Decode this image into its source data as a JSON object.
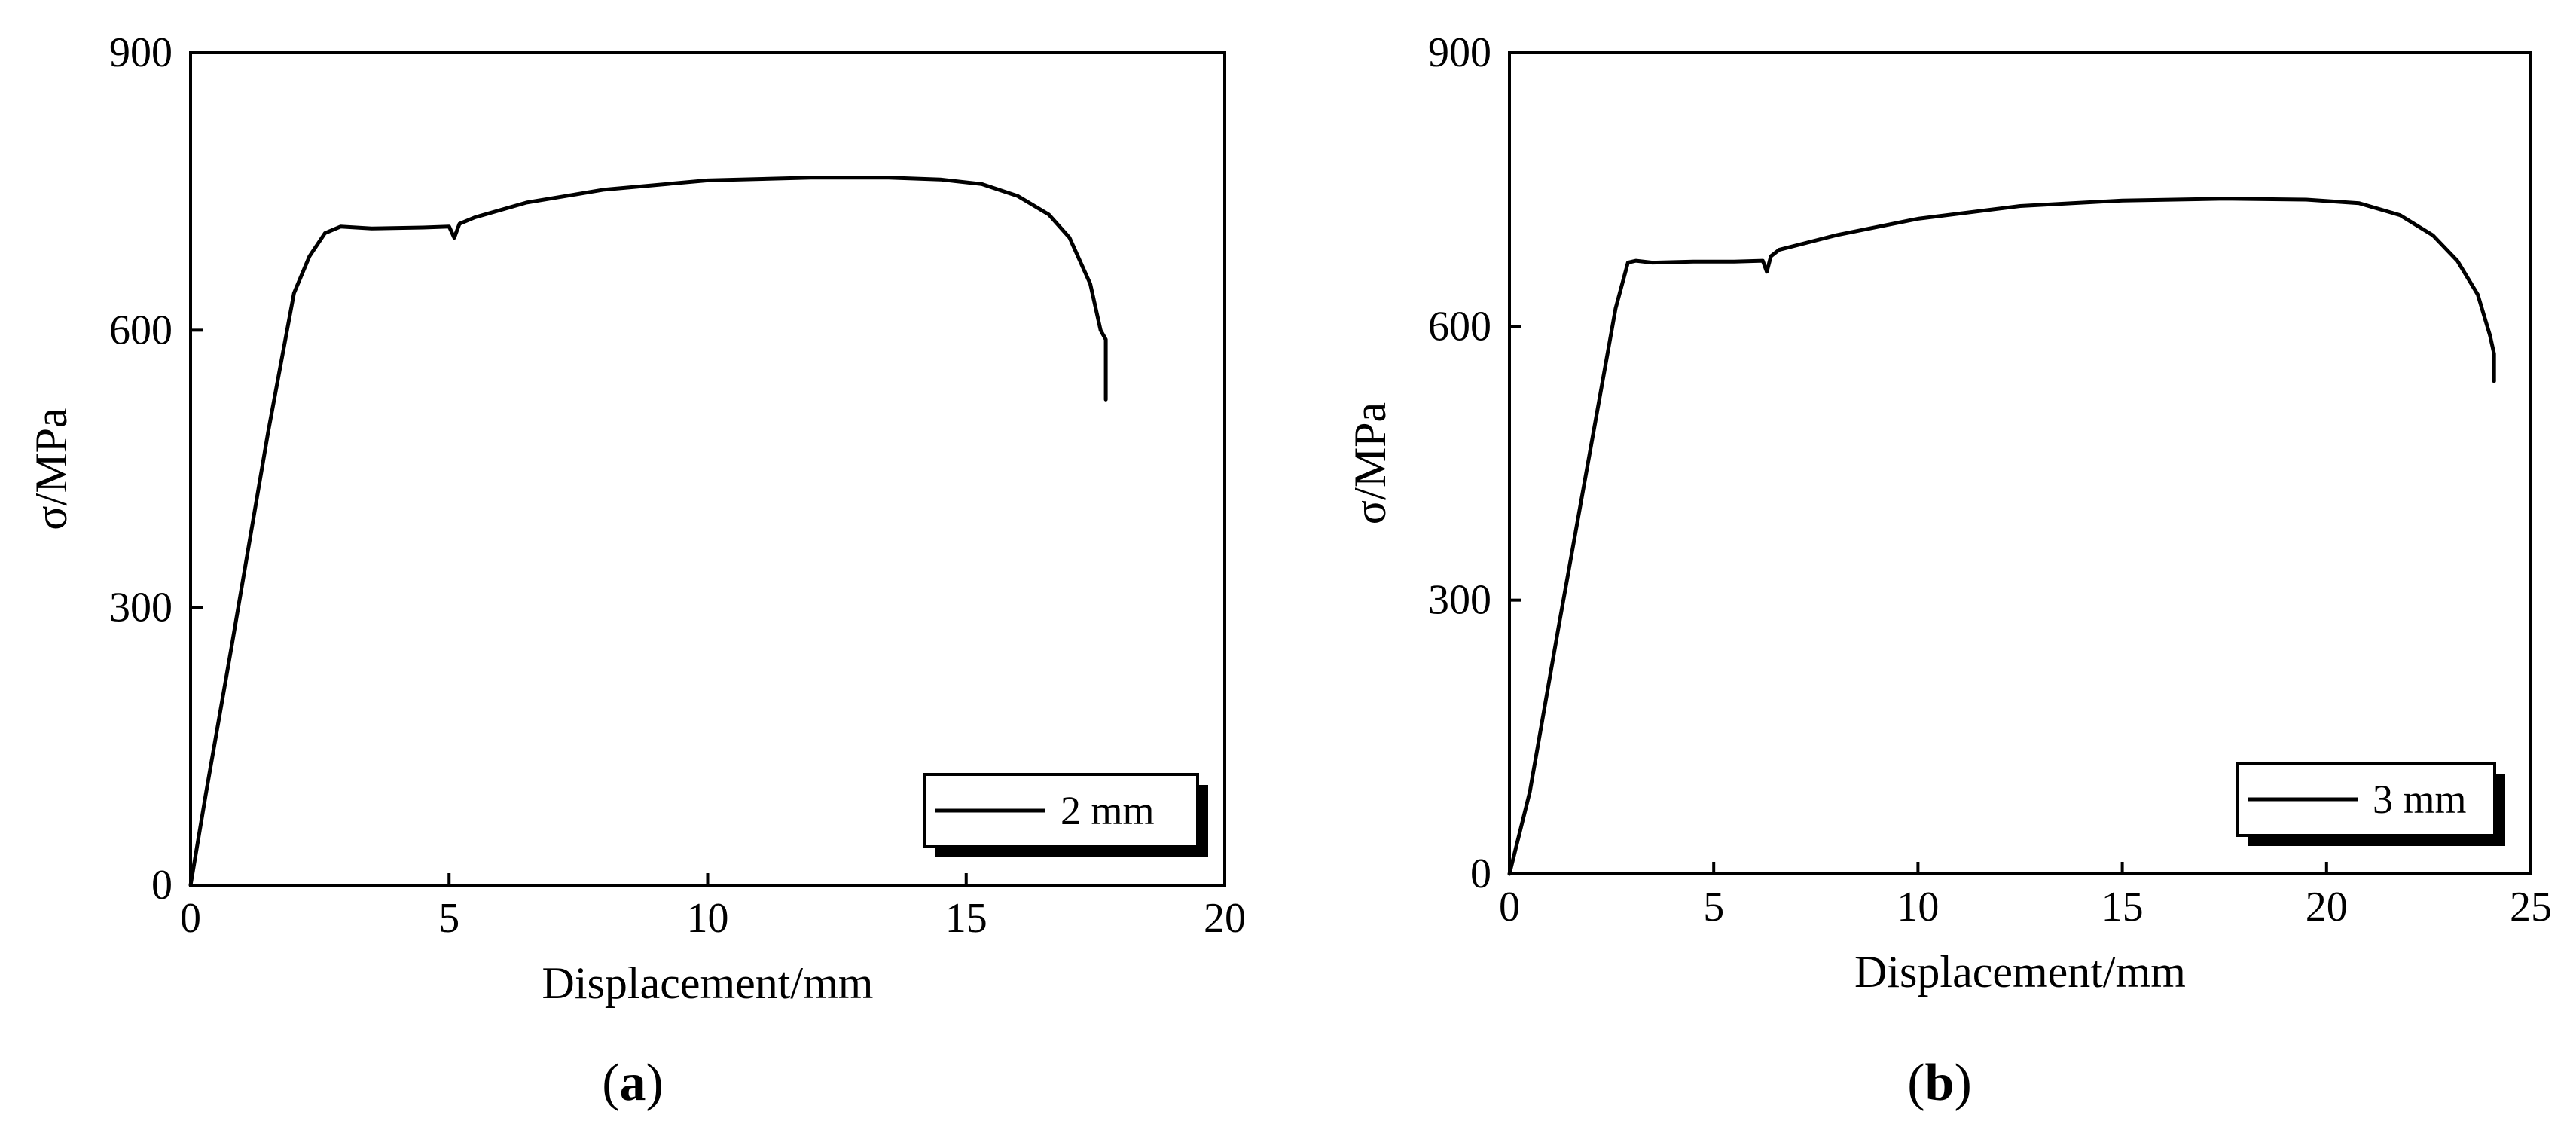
{
  "chart_data": [
    {
      "type": "line",
      "panel_label": "a",
      "xlabel": "Displacement/mm",
      "ylabel": "σ/MPa",
      "xlim": [
        0,
        20
      ],
      "ylim": [
        0,
        900
      ],
      "x_ticks": [
        0,
        5,
        10,
        15,
        20
      ],
      "y_ticks": [
        0,
        300,
        600,
        900
      ],
      "grid": false,
      "legend_position": "bottom-right",
      "series": [
        {
          "name": "2 mm",
          "color": "#000000",
          "x": [
            0,
            0.3,
            0.8,
            1.5,
            2.0,
            2.3,
            2.6,
            2.9,
            3.5,
            4.5,
            5.0,
            5.1,
            5.2,
            5.5,
            6.5,
            8.0,
            10.0,
            12.0,
            13.5,
            14.5,
            15.3,
            16.0,
            16.6,
            17.0,
            17.4,
            17.6,
            17.7,
            17.7
          ],
          "y": [
            0,
            100,
            260,
            490,
            640,
            680,
            705,
            712,
            710,
            711,
            712,
            700,
            715,
            722,
            738,
            752,
            762,
            765,
            765,
            763,
            758,
            745,
            725,
            700,
            650,
            600,
            590,
            525
          ]
        }
      ]
    },
    {
      "type": "line",
      "panel_label": "b",
      "xlabel": "Displacement/mm",
      "ylabel": "σ/MPa",
      "xlim": [
        0,
        25
      ],
      "ylim": [
        0,
        900
      ],
      "x_ticks": [
        0,
        5,
        10,
        15,
        20,
        25
      ],
      "y_ticks": [
        0,
        300,
        600,
        900
      ],
      "grid": false,
      "legend_position": "bottom-right",
      "series": [
        {
          "name": "3 mm",
          "color": "#000000",
          "x": [
            0,
            0.5,
            1.2,
            2.0,
            2.6,
            2.9,
            3.1,
            3.5,
            4.5,
            5.5,
            6.2,
            6.3,
            6.4,
            6.6,
            8.0,
            10.0,
            12.5,
            15.0,
            17.5,
            19.5,
            20.8,
            21.8,
            22.6,
            23.2,
            23.7,
            24.0,
            24.1,
            24.1
          ],
          "y": [
            0,
            90,
            270,
            470,
            620,
            670,
            672,
            670,
            671,
            671,
            672,
            660,
            677,
            684,
            700,
            718,
            732,
            738,
            740,
            739,
            735,
            722,
            700,
            672,
            635,
            590,
            570,
            540
          ]
        }
      ]
    }
  ]
}
